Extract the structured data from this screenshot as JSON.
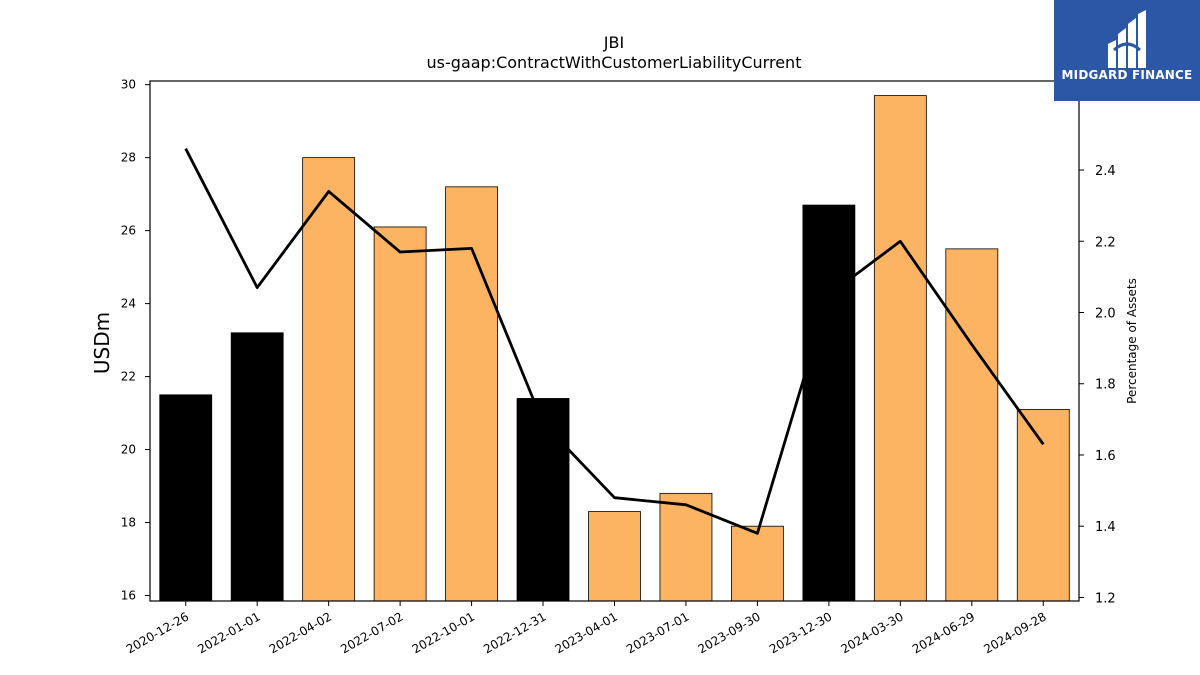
{
  "brand": {
    "name": "MIDGARD FINANCE",
    "bg_color": "#2c57a6"
  },
  "chart_data": {
    "type": "bar",
    "title": "JBI",
    "subtitle": "us-gaap:ContractWithCustomerLiabilityCurrent",
    "ylabel": "USDm",
    "y2label": "Percentage of Assets",
    "categories": [
      "2020-12-26",
      "2022-01-01",
      "2022-04-02",
      "2022-07-02",
      "2022-10-01",
      "2022-12-31",
      "2023-04-01",
      "2023-07-01",
      "2023-09-30",
      "2023-12-30",
      "2024-03-30",
      "2024-06-29",
      "2024-09-28"
    ],
    "series": [
      {
        "type": "bar",
        "values": [
          21.5,
          23.2,
          28.0,
          26.1,
          27.2,
          21.4,
          18.3,
          18.8,
          17.9,
          26.7,
          29.7,
          25.5,
          21.1
        ],
        "colors": [
          "#000000",
          "#000000",
          "#fdb462",
          "#fdb462",
          "#fdb462",
          "#000000",
          "#fdb462",
          "#fdb462",
          "#fdb462",
          "#000000",
          "#fdb462",
          "#fdb462",
          "#fdb462"
        ]
      },
      {
        "type": "line",
        "axis": "right",
        "values": [
          2.46,
          2.07,
          2.34,
          2.17,
          2.18,
          1.69,
          1.48,
          1.46,
          1.38,
          2.05,
          2.2,
          1.91,
          1.63
        ],
        "color": "#000000"
      }
    ],
    "ylim": [
      15.85,
      30.1
    ],
    "y2lim": [
      1.19,
      2.65
    ],
    "yticks": [
      16,
      18,
      20,
      22,
      24,
      26,
      28,
      30
    ],
    "y2ticks": [
      1.2,
      1.4,
      1.6,
      1.8,
      2.0,
      2.2,
      2.4
    ],
    "grid": false
  }
}
